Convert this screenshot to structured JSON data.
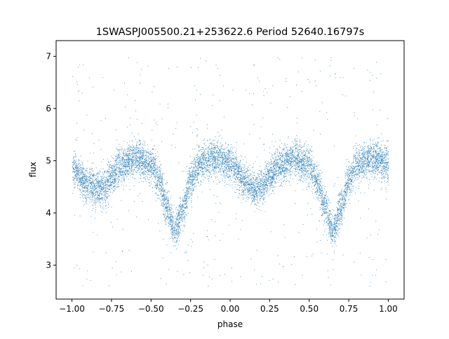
{
  "chart_data": {
    "type": "scatter",
    "title": "1SWASPJ005500.21+253622.6 Period 52640.16797s",
    "xlabel": "phase",
    "ylabel": "flux",
    "xlim": [
      -1.1,
      1.1
    ],
    "ylim": [
      2.35,
      7.3
    ],
    "grid": false,
    "legend": "none",
    "x_ticks": [
      -1.0,
      -0.75,
      -0.5,
      -0.25,
      0.0,
      0.25,
      0.5,
      0.75,
      1.0
    ],
    "x_tick_labels": [
      "−1.00",
      "−0.75",
      "−0.50",
      "−0.25",
      "0.00",
      "0.25",
      "0.50",
      "0.75",
      "1.00"
    ],
    "y_ticks": [
      3,
      4,
      5,
      6,
      7
    ],
    "y_tick_labels": [
      "3",
      "4",
      "5",
      "6",
      "7"
    ],
    "point_color": "#1f77b4",
    "phase_range": [
      -1.0,
      1.0
    ],
    "light_curve_trend": {
      "phase": [
        -1.0,
        -0.9,
        -0.85,
        -0.8,
        -0.75,
        -0.7,
        -0.6,
        -0.5,
        -0.45,
        -0.4,
        -0.35,
        -0.3,
        -0.25,
        -0.2,
        -0.1,
        0.0,
        0.1,
        0.15,
        0.2,
        0.25,
        0.3,
        0.4,
        0.5,
        0.55,
        0.6,
        0.65,
        0.7,
        0.75,
        0.8,
        0.9,
        1.0
      ],
      "flux": [
        4.85,
        4.55,
        4.45,
        4.5,
        4.7,
        4.9,
        5.05,
        4.9,
        4.6,
        4.1,
        3.65,
        4.1,
        4.65,
        4.95,
        5.05,
        4.95,
        4.6,
        4.45,
        4.5,
        4.7,
        4.9,
        5.05,
        4.9,
        4.6,
        4.1,
        3.65,
        4.1,
        4.65,
        4.95,
        5.05,
        4.95
      ]
    },
    "band_half_width": 0.28,
    "outlier_flux_range": [
      2.6,
      7.0
    ]
  }
}
